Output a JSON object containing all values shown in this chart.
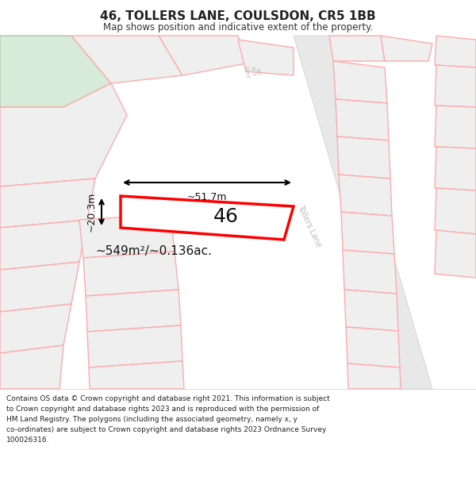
{
  "title": "46, TOLLERS LANE, COULSDON, CR5 1BB",
  "subtitle": "Map shows position and indicative extent of the property.",
  "footer_lines": [
    "Contains OS data © Crown copyright and database right 2021. This information is subject",
    "to Crown copyright and database rights 2023 and is reproduced with the permission of",
    "HM Land Registry. The polygons (including the associated geometry, namely x, y",
    "co-ordinates) are subject to Crown copyright and database rights 2023 Ordnance Survey",
    "100026316."
  ],
  "area_label": "~549m²/~0.136ac.",
  "width_label": "~51.7m",
  "height_label": "~20.3m",
  "plot_number": "46",
  "bg_color": "#ffffff",
  "plot_outline_color": "#ff0000",
  "nearby_outline": "#ffaaaa",
  "nearby_fill": "#efefef",
  "green_fill": "#d8ead8",
  "green_outline": "#aaccaa",
  "road_fill": "#e8e8e8",
  "road_outline": "#cccccc",
  "road_label_color": "#bbbbbb",
  "dimension_color": "#000000"
}
